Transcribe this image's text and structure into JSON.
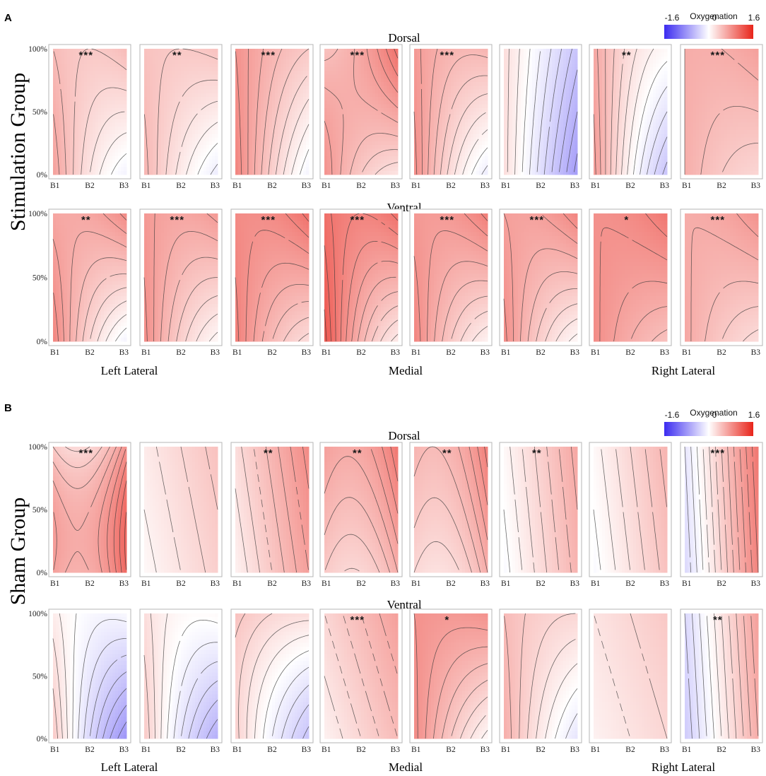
{
  "chart_data": {
    "type": "heatmap",
    "description_axes": {
      "x_ticks": [
        "B1",
        "B2",
        "B3"
      ],
      "y_ticks": [
        "100%",
        "50%",
        "0%"
      ]
    },
    "colorbar": {
      "title": "Oxygenation",
      "min": -1.6,
      "mid": 0,
      "max": 1.6,
      "min_label": "-1.6",
      "mid_label": "0",
      "max_label": "1.6",
      "colors": {
        "low": "#3b2bf0",
        "mid": "#ffffff",
        "high": "#e8241a"
      }
    },
    "regions": [
      "Left Lateral",
      "Medial",
      "Right Lateral"
    ],
    "panels": [
      {
        "label": "A",
        "group_title": "Stimulation Group",
        "rows": [
          {
            "title": "Dorsal",
            "maps": [
              {
                "sig": "***",
                "coef": [
                  0.2,
                  -0.4,
                  0.2,
                  0.4,
                  0.0,
                  0.1
                ]
              },
              {
                "sig": "**",
                "coef": [
                  0.15,
                  -0.35,
                  0.25,
                  0.35,
                  0.0,
                  0.05
                ]
              },
              {
                "sig": "***",
                "coef": [
                  0.35,
                  -0.5,
                  0.2,
                  0.3,
                  0.0,
                  0.05
                ]
              },
              {
                "sig": "***",
                "coef": [
                  0.4,
                  -0.3,
                  0.45,
                  0.6,
                  -0.2,
                  0.1
                ]
              },
              {
                "sig": "***",
                "coef": [
                  0.25,
                  -0.5,
                  0.3,
                  0.4,
                  0.0,
                  0.1
                ]
              },
              {
                "sig": "",
                "coef": [
                  -0.25,
                  -0.5,
                  0.15,
                  0.15,
                  0.0,
                  0.0
                ]
              },
              {
                "sig": "**",
                "coef": [
                  0.05,
                  -0.6,
                  0.2,
                  0.3,
                  0.0,
                  0.1
                ]
              },
              {
                "sig": "***",
                "coef": [
                  0.4,
                  -0.15,
                  0.2,
                  0.2,
                  0.0,
                  0.05
                ]
              }
            ]
          },
          {
            "title": "Ventral",
            "maps": [
              {
                "sig": "**",
                "coef": [
                  0.3,
                  -0.5,
                  0.35,
                  0.6,
                  0.0,
                  0.1
                ]
              },
              {
                "sig": "***",
                "coef": [
                  0.35,
                  -0.4,
                  0.3,
                  0.4,
                  0.0,
                  0.1
                ]
              },
              {
                "sig": "***",
                "coef": [
                  0.5,
                  -0.35,
                  0.35,
                  0.45,
                  0.0,
                  0.1
                ]
              },
              {
                "sig": "***",
                "coef": [
                  0.55,
                  -0.55,
                  0.35,
                  0.55,
                  0.0,
                  0.15
                ]
              },
              {
                "sig": "***",
                "coef": [
                  0.4,
                  -0.4,
                  0.35,
                  0.5,
                  0.0,
                  0.1
                ]
              },
              {
                "sig": "***",
                "coef": [
                  0.35,
                  -0.4,
                  0.35,
                  0.5,
                  0.0,
                  0.1
                ]
              },
              {
                "sig": "*",
                "coef": [
                  0.6,
                  -0.2,
                  0.25,
                  0.3,
                  0.0,
                  0.05
                ]
              },
              {
                "sig": "***",
                "coef": [
                  0.4,
                  -0.2,
                  0.25,
                  0.3,
                  0.0,
                  0.05
                ]
              }
            ]
          }
        ]
      },
      {
        "label": "B",
        "group_title": "Sham Group",
        "rows": [
          {
            "title": "Dorsal",
            "maps": [
              {
                "sig": "***",
                "coef": [
                  0.6,
                  0.2,
                  0.3,
                  0.0,
                  -0.6,
                  0.3
                ]
              },
              {
                "sig": "",
                "coef": [
                  0.2,
                  0.15,
                  0.1,
                  0.0,
                  0.0,
                  0.0
                ]
              },
              {
                "sig": "**",
                "coef": [
                  0.4,
                  0.3,
                  0.15,
                  0.0,
                  0.0,
                  0.0
                ]
              },
              {
                "sig": "**",
                "coef": [
                  0.3,
                  0.1,
                  0.4,
                  0.05,
                  -0.05,
                  0.2
                ]
              },
              {
                "sig": "**",
                "coef": [
                  0.25,
                  0.15,
                  0.35,
                  0.05,
                  -0.05,
                  0.2
                ]
              },
              {
                "sig": "**",
                "coef": [
                  0.25,
                  0.3,
                  0.1,
                  0.0,
                  0.0,
                  0.0
                ]
              },
              {
                "sig": "",
                "coef": [
                  0.2,
                  0.25,
                  0.1,
                  0.0,
                  0.0,
                  0.0
                ]
              },
              {
                "sig": "***",
                "coef": [
                  0.3,
                  0.6,
                  0.1,
                  0.0,
                  0.0,
                  0.0
                ]
              }
            ]
          },
          {
            "title": "Ventral",
            "maps": [
              {
                "sig": "",
                "coef": [
                  -0.3,
                  -0.6,
                  0.25,
                  0.5,
                  0.0,
                  0.1
                ]
              },
              {
                "sig": "",
                "coef": [
                  -0.2,
                  -0.5,
                  0.25,
                  0.4,
                  0.0,
                  0.1
                ]
              },
              {
                "sig": "",
                "coef": [
                  -0.1,
                  -0.4,
                  0.2,
                  0.3,
                  0.2,
                  0.05
                ]
              },
              {
                "sig": "***",
                "coef": [
                  0.3,
                  0.2,
                  0.2,
                  0.0,
                  0.0,
                  0.0
                ]
              },
              {
                "sig": "*",
                "coef": [
                  0.4,
                  -0.4,
                  0.35,
                  0.4,
                  0.0,
                  0.05
                ]
              },
              {
                "sig": "",
                "coef": [
                  0.15,
                  -0.4,
                  0.2,
                  0.3,
                  0.0,
                  0.05
                ]
              },
              {
                "sig": "",
                "coef": [
                  0.2,
                  0.1,
                  0.1,
                  0.0,
                  0.0,
                  0.0
                ]
              },
              {
                "sig": "**",
                "coef": [
                  0.1,
                  0.5,
                  0.1,
                  0.0,
                  0.0,
                  0.0
                ]
              }
            ]
          }
        ]
      }
    ]
  }
}
